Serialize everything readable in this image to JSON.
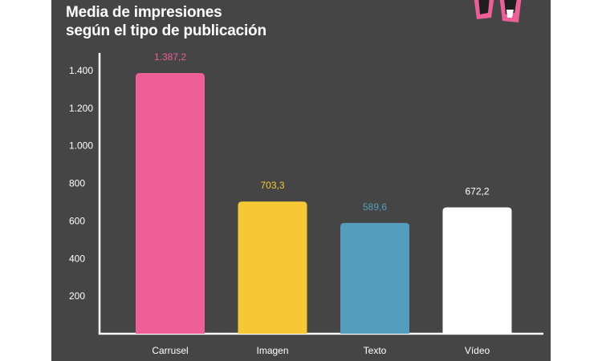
{
  "title_lines": [
    "Media de impresiones",
    "según el tipo de publicación"
  ],
  "colors": {
    "background": "#454545",
    "axis": "#ffffff",
    "text": "#ffffff"
  },
  "chart_data": {
    "type": "bar",
    "title": "Media de impresiones según el tipo de publicación",
    "categories": [
      "Carrusel",
      "Imagen",
      "Texto",
      "Vídeo"
    ],
    "values": [
      1387.2,
      703.3,
      589.6,
      672.2
    ],
    "value_labels": [
      "1.387,2",
      "703,3",
      "589,6",
      "672,2"
    ],
    "bar_colors": [
      "#ef5f97",
      "#f6c836",
      "#549dbd",
      "#ffffff"
    ],
    "label_colors": [
      "#ef5f97",
      "#f6c836",
      "#549dbd",
      "#ffffff"
    ],
    "ylim": [
      0,
      1500
    ],
    "yticks": [
      200,
      400,
      600,
      800,
      1000,
      1200,
      1400
    ],
    "ytick_labels": [
      "200",
      "400",
      "600",
      "800",
      "1.000",
      "1.200",
      "1.400"
    ],
    "xlabel": "",
    "ylabel": "",
    "grid": false,
    "legend": "none"
  }
}
